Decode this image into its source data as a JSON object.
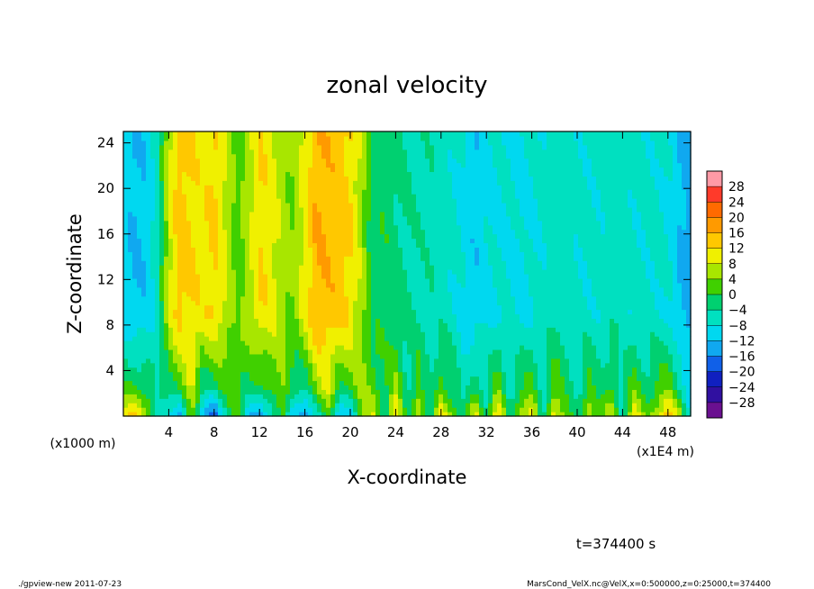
{
  "chart_data": {
    "type": "heatmap",
    "title": "zonal velocity",
    "xlabel": "X-coordinate",
    "ylabel": "Z-coordinate",
    "x_unit_label": "(x1E4 m)",
    "y_unit_label": "(x1000 m)",
    "xlim": [
      0,
      50
    ],
    "ylim": [
      0,
      25
    ],
    "x_ticks": [
      4,
      8,
      12,
      16,
      20,
      24,
      28,
      32,
      36,
      40,
      44,
      48
    ],
    "y_ticks": [
      4,
      8,
      12,
      16,
      20,
      24
    ],
    "colorbar": {
      "levels": [
        28,
        24,
        20,
        16,
        12,
        8,
        4,
        0,
        -4,
        -8,
        -12,
        -16,
        -20,
        -24,
        -28
      ],
      "colors": [
        "#ff9aa6",
        "#ff3a2a",
        "#ff6a00",
        "#ff9a00",
        "#ffc800",
        "#f0f000",
        "#a8e600",
        "#40d000",
        "#00d070",
        "#00e0c0",
        "#00d8f0",
        "#10a8f0",
        "#1060e8",
        "#1020c0",
        "#3010a0",
        "#6a1090"
      ]
    },
    "field_description_x": [
      0,
      1,
      2,
      3,
      4,
      5,
      6,
      7,
      8,
      9,
      10,
      11,
      12,
      13,
      14,
      15,
      16,
      17,
      18,
      19,
      20,
      21,
      22,
      23,
      24,
      25,
      26,
      27,
      28,
      29,
      30,
      31,
      32,
      33,
      34,
      35,
      36,
      37,
      38,
      39,
      40,
      41,
      42,
      43,
      44,
      45,
      46,
      47,
      48,
      49,
      50
    ],
    "upper_profile": [
      -10,
      -12,
      -11,
      -6,
      8,
      14,
      12,
      10,
      13,
      8,
      2,
      6,
      12,
      10,
      6,
      4,
      10,
      16,
      15,
      14,
      12,
      6,
      -2,
      -1,
      -3,
      -4,
      -5,
      -5,
      -6,
      -7,
      -9,
      -11,
      -9,
      -8,
      -8,
      -9,
      -8,
      -7,
      -6,
      -6,
      -7,
      -7,
      -7,
      -6,
      -6,
      -7,
      -7,
      -7,
      -8,
      -12,
      -14
    ],
    "surface_profile": [
      10,
      14,
      8,
      -6,
      -10,
      -12,
      4,
      -14,
      -18,
      -6,
      4,
      -10,
      -16,
      -8,
      4,
      -12,
      -16,
      -6,
      2,
      -14,
      -10,
      4,
      8,
      -2,
      12,
      -4,
      10,
      -6,
      12,
      4,
      -4,
      10,
      -2,
      14,
      -4,
      8,
      10,
      -6,
      12,
      2,
      -4,
      10,
      0,
      8,
      -6,
      12,
      2,
      8,
      14,
      6,
      -8
    ]
  },
  "footer": {
    "time_label": "t=374400 s",
    "left_info": "./gpview-new   2011-07-23",
    "right_info": "MarsCond_VelX.nc@VelX,x=0:500000,z=0:25000,t=374400"
  }
}
